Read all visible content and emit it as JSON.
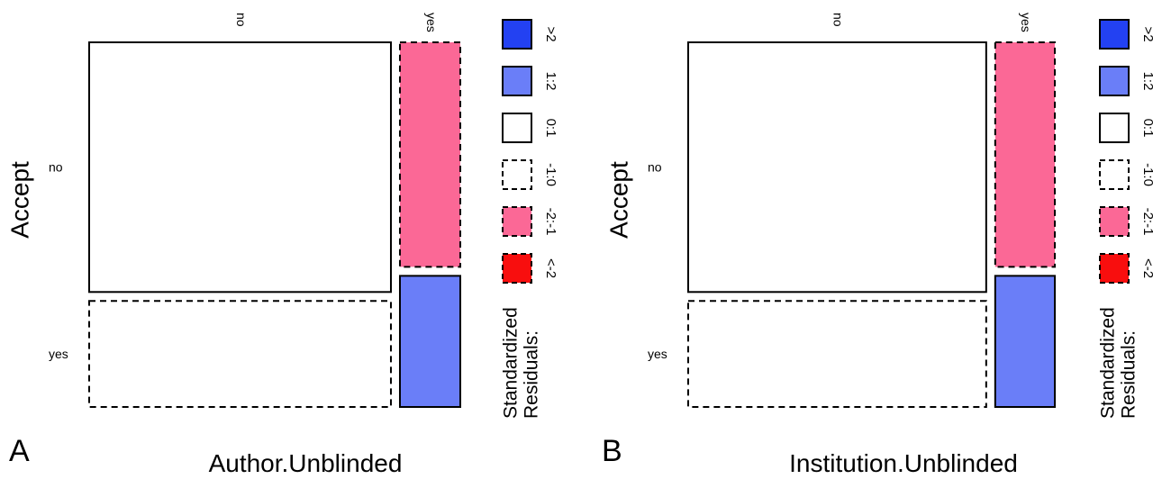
{
  "chart_data": [
    {
      "type": "mosaic",
      "panel_label": "A",
      "xlabel": "Author.Unblinded",
      "ylabel": "Accept",
      "x_categories": [
        "no",
        "yes"
      ],
      "y_categories": [
        "no",
        "yes"
      ],
      "x_proportions": [
        0.83,
        0.17
      ],
      "cells": [
        {
          "x": "no",
          "y": "no",
          "y_share": 0.7,
          "residual_class": "0:1"
        },
        {
          "x": "no",
          "y": "yes",
          "y_share": 0.3,
          "residual_class": "-1:0"
        },
        {
          "x": "yes",
          "y": "no",
          "y_share": 0.63,
          "residual_class": "-2:-1"
        },
        {
          "x": "yes",
          "y": "yes",
          "y_share": 0.37,
          "residual_class": "1:2"
        }
      ],
      "legend": {
        "title_lines": [
          "Standardized",
          "Residuals:"
        ],
        "items": [
          {
            "label": ">2",
            "fill": "#2341f2",
            "dashed": false
          },
          {
            "label": "1:2",
            "fill": "#6a7ef8",
            "dashed": false
          },
          {
            "label": "0:1",
            "fill": "#ffffff",
            "dashed": false
          },
          {
            "label": "-1:0",
            "fill": "#ffffff",
            "dashed": true
          },
          {
            "label": "-2:-1",
            "fill": "#fb6896",
            "dashed": true
          },
          {
            "label": "<-2",
            "fill": "#f80e0e",
            "dashed": true
          }
        ]
      }
    },
    {
      "type": "mosaic",
      "panel_label": "B",
      "xlabel": "Institution.Unblinded",
      "ylabel": "Accept",
      "x_categories": [
        "no",
        "yes"
      ],
      "y_categories": [
        "no",
        "yes"
      ],
      "x_proportions": [
        0.83,
        0.17
      ],
      "cells": [
        {
          "x": "no",
          "y": "no",
          "y_share": 0.7,
          "residual_class": "0:1"
        },
        {
          "x": "no",
          "y": "yes",
          "y_share": 0.3,
          "residual_class": "-1:0"
        },
        {
          "x": "yes",
          "y": "no",
          "y_share": 0.63,
          "residual_class": "-2:-1"
        },
        {
          "x": "yes",
          "y": "yes",
          "y_share": 0.37,
          "residual_class": "1:2"
        }
      ],
      "legend": {
        "title_lines": [
          "Standardized",
          "Residuals:"
        ],
        "items": [
          {
            "label": ">2",
            "fill": "#2341f2",
            "dashed": false
          },
          {
            "label": "1:2",
            "fill": "#6a7ef8",
            "dashed": false
          },
          {
            "label": "0:1",
            "fill": "#ffffff",
            "dashed": false
          },
          {
            "label": "-1:0",
            "fill": "#ffffff",
            "dashed": true
          },
          {
            "label": "-2:-1",
            "fill": "#fb6896",
            "dashed": true
          },
          {
            "label": "<-2",
            "fill": "#f80e0e",
            "dashed": true
          }
        ]
      }
    }
  ]
}
